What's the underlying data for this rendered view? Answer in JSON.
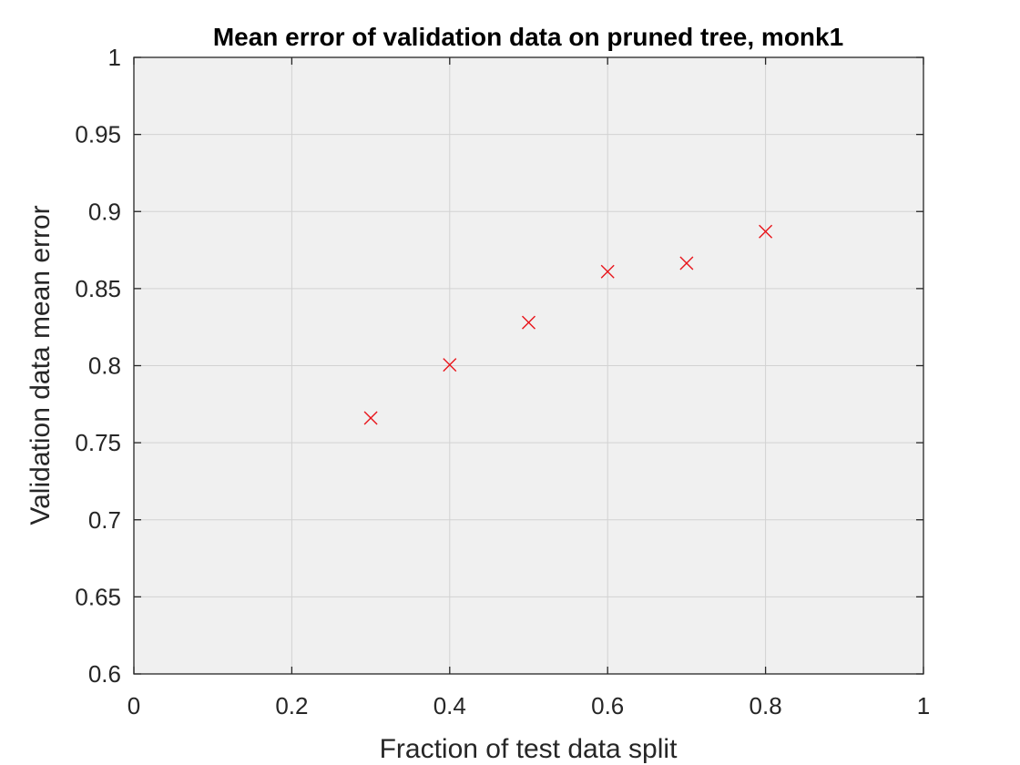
{
  "chart_data": {
    "type": "scatter",
    "title": "Mean error of validation data on pruned tree, monk1",
    "xlabel": "Fraction of test data split",
    "ylabel": "Validation data mean error",
    "xlim": [
      0,
      1
    ],
    "ylim": [
      0.6,
      1
    ],
    "x_ticks": [
      0,
      0.2,
      0.4,
      0.6,
      0.8,
      1
    ],
    "x_tick_labels": [
      "0",
      "0.2",
      "0.4",
      "0.6",
      "0.8",
      "1"
    ],
    "y_ticks": [
      0.6,
      0.65,
      0.7,
      0.75,
      0.8,
      0.85,
      0.9,
      0.95,
      1
    ],
    "y_tick_labels": [
      "0.6",
      "0.65",
      "0.7",
      "0.75",
      "0.8",
      "0.85",
      "0.9",
      "0.95",
      "1"
    ],
    "grid": true,
    "marker": "x",
    "marker_color": "#e8141a",
    "plot_background": "#f0f0f0",
    "series": [
      {
        "x": [
          0.3,
          0.4,
          0.5,
          0.6,
          0.7,
          0.8
        ],
        "y": [
          0.766,
          0.8005,
          0.828,
          0.861,
          0.8665,
          0.887
        ]
      }
    ]
  }
}
